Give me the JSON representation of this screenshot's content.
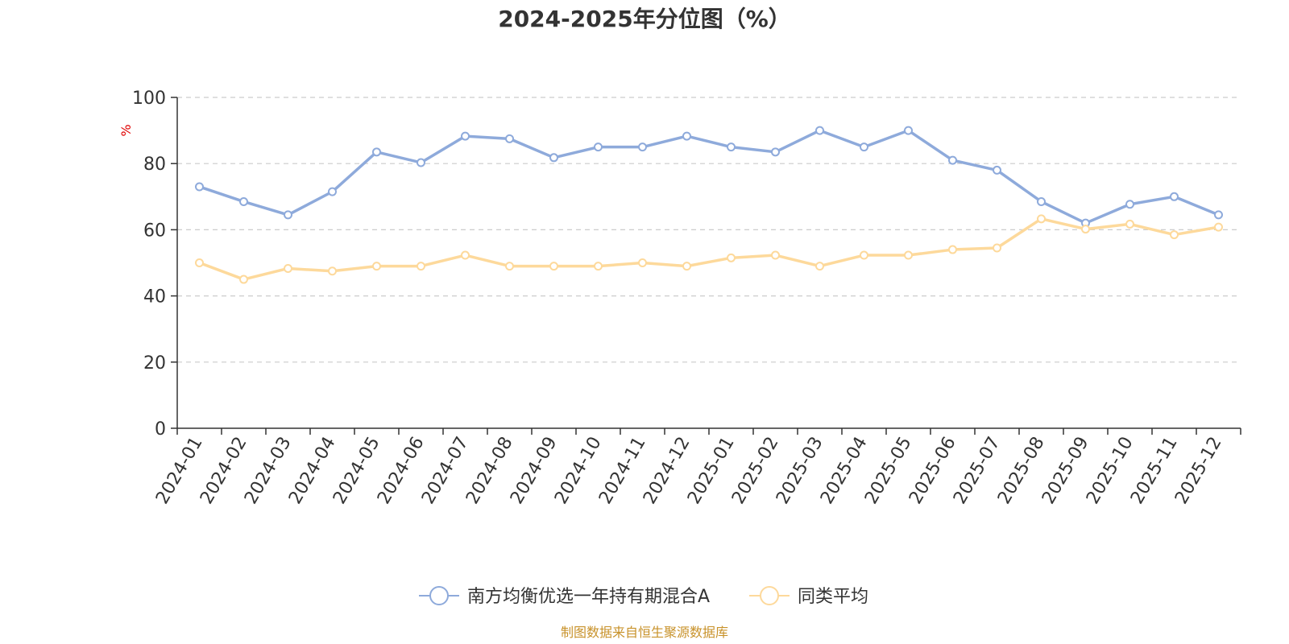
{
  "chart_data": {
    "type": "line",
    "title": "2024-2025年分位图（%）",
    "ylabel": "%",
    "ylim": [
      0,
      100
    ],
    "yticks": [
      0,
      20,
      40,
      60,
      80,
      100
    ],
    "grid": true,
    "legend_position": "bottom-center",
    "categories": [
      "2024-01",
      "2024-02",
      "2024-03",
      "2024-04",
      "2024-05",
      "2024-06",
      "2024-07",
      "2024-08",
      "2024-09",
      "2024-10",
      "2024-11",
      "2024-12",
      "2025-01",
      "2025-02",
      "2025-03",
      "2025-04",
      "2025-05",
      "2025-06",
      "2025-07",
      "2025-08",
      "2025-09",
      "2025-10",
      "2025-11",
      "2025-12"
    ],
    "series": [
      {
        "name": "南方均衡优选一年持有期混合A",
        "color": "#8eaadb",
        "values": [
          73,
          68.5,
          64.5,
          71.5,
          83.5,
          80.3,
          88.3,
          87.5,
          81.8,
          85,
          85,
          88.3,
          85,
          83.5,
          90,
          85,
          90,
          81,
          78,
          68.5,
          62,
          67.7,
          70,
          64.5
        ]
      },
      {
        "name": "同类平均",
        "color": "#fdd99b",
        "values": [
          50,
          45,
          48.3,
          47.5,
          49,
          49,
          52.3,
          49,
          49,
          49,
          50,
          49,
          51.5,
          52.3,
          49,
          52.3,
          52.3,
          54,
          54.5,
          63.3,
          60.2,
          61.7,
          58.5,
          60.8
        ]
      }
    ],
    "source": "制图数据来自恒生聚源数据库",
    "source_color": "#c8922a",
    "ylabel_color": "#e00000",
    "axis_color": "#333333"
  }
}
